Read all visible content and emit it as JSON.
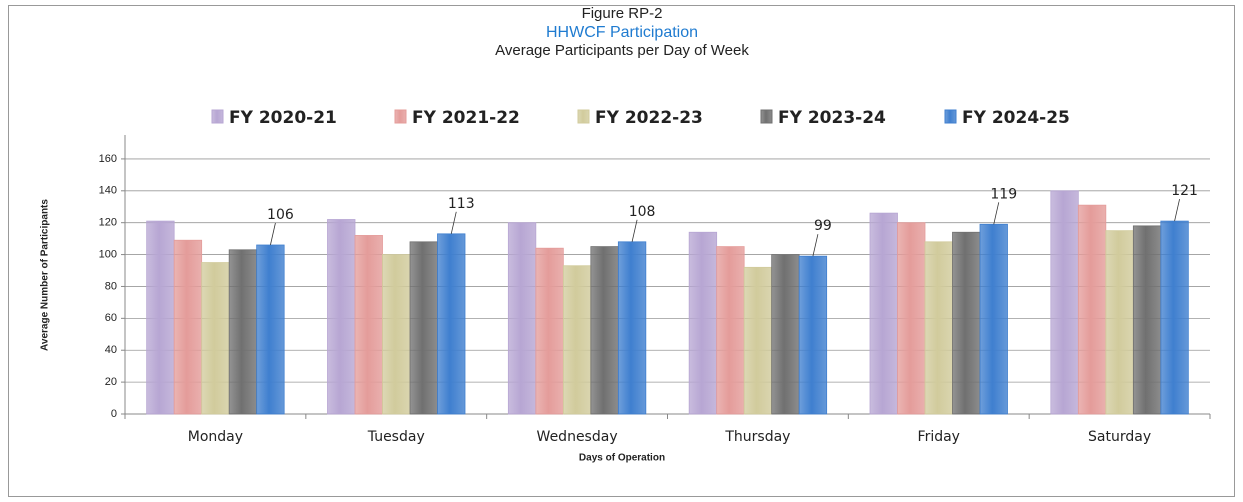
{
  "chart_data": {
    "type": "bar",
    "title": "Figure RP-2",
    "subtitle": "HHWCF Participation",
    "subtitle2": "Average Participants per Day of Week",
    "x_label": "Days of Operation",
    "y_label": "Average Number of Participants",
    "categories": [
      "Monday",
      "Tuesday",
      "Wednesday",
      "Thursday",
      "Friday",
      "Saturday"
    ],
    "series": [
      {
        "name": "FY 2020-21",
        "color": "#b7a6d3",
        "values": [
          121,
          122,
          120,
          114,
          126,
          140
        ]
      },
      {
        "name": "FY 2021-22",
        "color": "#e49c9a",
        "values": [
          109,
          112,
          104,
          105,
          120,
          131
        ]
      },
      {
        "name": "FY 2022-23",
        "color": "#d1cb9c",
        "values": [
          95,
          100,
          93,
          92,
          108,
          115
        ]
      },
      {
        "name": "FY 2023-24",
        "color": "#707070",
        "values": [
          103,
          108,
          105,
          100,
          114,
          118
        ]
      },
      {
        "name": "FY 2024-25",
        "color": "#3f7fcf",
        "values": [
          106,
          113,
          108,
          99,
          119,
          121
        ],
        "show_labels": true
      }
    ],
    "ylim": [
      0,
      175
    ],
    "yticks": [
      0,
      20,
      40,
      60,
      80,
      100,
      120,
      140,
      160
    ],
    "grid": true,
    "legend": "top"
  }
}
